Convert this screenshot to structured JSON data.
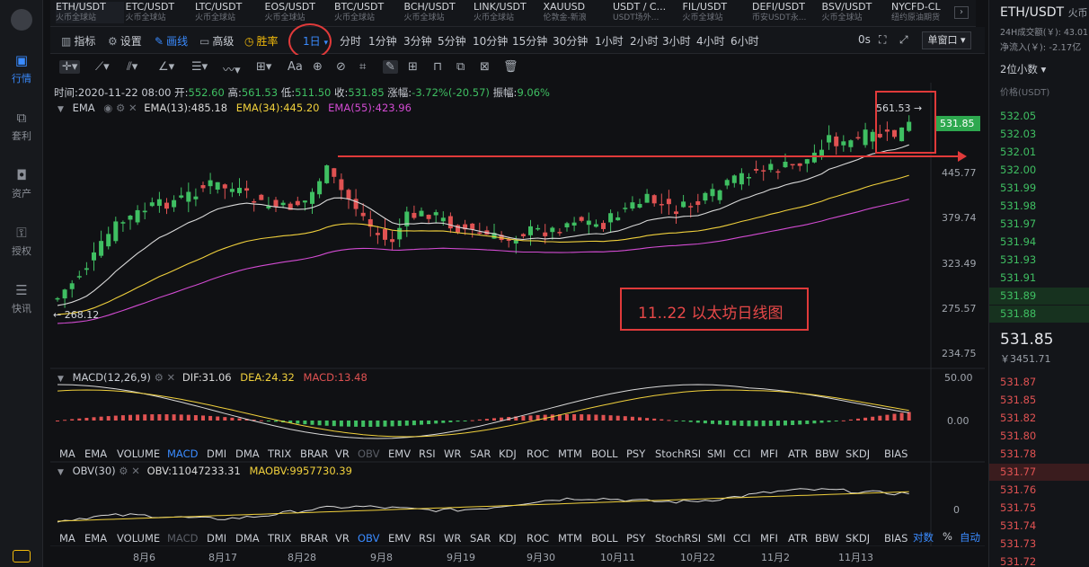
{
  "left_nav": [
    {
      "label": "行情",
      "icon": "market-icon",
      "active": true
    },
    {
      "label": "套利",
      "icon": "arbitrage-icon",
      "active": false
    },
    {
      "label": "资产",
      "icon": "asset-icon",
      "active": false
    },
    {
      "label": "授权",
      "icon": "authorize-icon",
      "active": false
    },
    {
      "label": "快讯",
      "icon": "news-icon",
      "active": false
    }
  ],
  "tickers": [
    {
      "symbol": "ETH/USDT",
      "exchange": "火币全球站"
    },
    {
      "symbol": "ETC/USDT",
      "exchange": "火币全球站"
    },
    {
      "symbol": "LTC/USDT",
      "exchange": "火币全球站"
    },
    {
      "symbol": "EOS/USDT",
      "exchange": "火币全球站"
    },
    {
      "symbol": "BTC/USDT",
      "exchange": "火币全球站"
    },
    {
      "symbol": "BCH/USDT",
      "exchange": "火币全球站"
    },
    {
      "symbol": "LINK/USDT",
      "exchange": "火币全球站"
    },
    {
      "symbol": "XAUUSD",
      "exchange": "伦敦金-新浪"
    },
    {
      "symbol": "USDT / C...",
      "exchange": "USDT场外..."
    },
    {
      "symbol": "FIL/USDT",
      "exchange": "火币全球站"
    },
    {
      "symbol": "DEFI/USDT",
      "exchange": "币安USDT永..."
    },
    {
      "symbol": "BSV/USDT",
      "exchange": "火币全球站"
    },
    {
      "symbol": "NYCFD-CL",
      "exchange": "纽约原油期货"
    }
  ],
  "toolbar": {
    "indicator": "指标",
    "settings": "设置",
    "draw": "画线",
    "advanced": "高级",
    "winrate": "胜率",
    "period_selected": "1日",
    "periods": [
      "分时",
      "1分钟",
      "3分钟",
      "5分钟",
      "10分钟",
      "15分钟",
      "30分钟",
      "1小时",
      "2小时",
      "3小时",
      "4小时",
      "6小时"
    ],
    "countdown": "0s",
    "window_mode": "单窗口"
  },
  "drawing_text_tool": "Aa",
  "ohlc": {
    "time": "时间:2020-11-22 08:00",
    "open_label": "开:",
    "open": "552.60",
    "high_label": "高:",
    "high": "561.53",
    "low_label": "低:",
    "low": "511.50",
    "close_label": "收:",
    "close": "531.85",
    "change_label": "涨幅:",
    "change": "-3.72%(-20.57)",
    "amplitude_label": "振幅:",
    "amplitude": "9.06%"
  },
  "ema": {
    "name": "EMA",
    "ema13": "EMA(13):485.18",
    "ema34": "EMA(34):445.20",
    "ema55": "EMA(55):423.96"
  },
  "macd": {
    "name": "MACD(12,26,9)",
    "dif": "DIF:31.06",
    "dea": "DEA:24.32",
    "macd": "MACD:13.48"
  },
  "obv": {
    "name": "OBV(30)",
    "obv": "OBV:11047233.31",
    "maobv": "MAOBV:9957730.39"
  },
  "indicator_tabs": [
    "MA",
    "EMA",
    "VOLUME",
    "MACD",
    "DMI",
    "DMA",
    "TRIX",
    "BRAR",
    "VR",
    "OBV",
    "EMV",
    "RSI",
    "WR",
    "SAR",
    "KDJ",
    "ROC",
    "MTM",
    "BOLL",
    "PSY",
    "StochRSI",
    "SMI",
    "CCI",
    "MFI",
    "ATR",
    "BBW",
    "SKDJ",
    "BIAS"
  ],
  "price_axis": [
    "445.77",
    "379.74",
    "323.49",
    "275.57",
    "234.75"
  ],
  "current_price_tag": "531.85",
  "high_marker": "561.53",
  "low_marker": "268.12",
  "macd_axis": [
    "50.00",
    "0.00"
  ],
  "obv_axis": [
    "0"
  ],
  "date_axis": [
    "8月6",
    "8月17",
    "8月28",
    "9月8",
    "9月19",
    "9月30",
    "10月11",
    "10月22",
    "11月2",
    "11月13"
  ],
  "bottom_controls": [
    "对数",
    "%",
    "自动"
  ],
  "annotation": "11..22 以太坊日线图",
  "right_panel": {
    "symbol": "ETH/USDT",
    "exchange_short": "火币",
    "volume_24h": "24H成交额(￥): 43.01",
    "net_inflow": "净流入(￥): -2.17亿",
    "decimals": "2位小数",
    "price_header": "价格(USDT)",
    "asks": [
      "532.05",
      "532.03",
      "532.01",
      "532.00",
      "531.99",
      "531.98",
      "531.97",
      "531.94",
      "531.93",
      "531.91",
      "531.89",
      "531.88"
    ],
    "last_price": "531.85",
    "last_cny": "￥3451.71",
    "bids": [
      "531.87",
      "531.85",
      "531.82",
      "531.80",
      "531.78",
      "531.77",
      "531.76",
      "531.75",
      "531.74",
      "531.73",
      "531.72"
    ]
  },
  "colors": {
    "up": "#3fbf62",
    "down": "#e05252",
    "accent": "#3a8bff",
    "ema13": "#d8d8d8",
    "ema34": "#f0d03c",
    "ema55": "#d24bd2"
  }
}
